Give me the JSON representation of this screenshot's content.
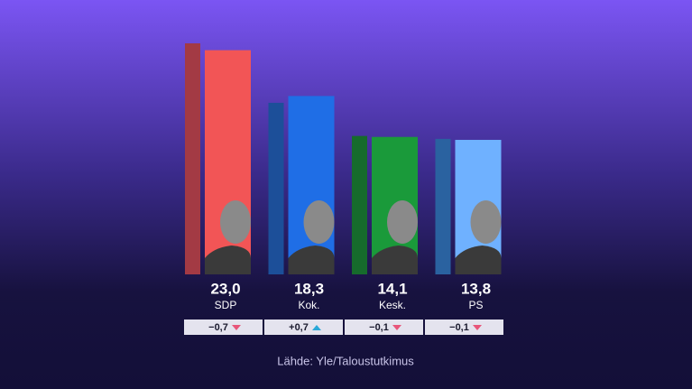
{
  "chart_data": {
    "type": "bar",
    "categories": [
      "SDP",
      "Kok.",
      "Kesk.",
      "PS"
    ],
    "values": [
      23.0,
      18.3,
      14.1,
      13.8
    ],
    "value_labels": [
      "23,0",
      "18,3",
      "14,1",
      "13,8"
    ],
    "colors": [
      "#f25556",
      "#1f6ee6",
      "#1a9a3a",
      "#6fb1ff"
    ],
    "previous_values": [
      23.7,
      17.6,
      14.2,
      13.9
    ],
    "previous_colors": [
      "#a33a44",
      "#1c4f99",
      "#166b2c",
      "#2a62a0"
    ],
    "changes": [
      -0.7,
      0.7,
      -0.1,
      -0.1
    ],
    "change_labels": [
      "−0,7",
      "+0,7",
      "−0,1",
      "−0,1"
    ],
    "ylim": [
      0,
      25
    ],
    "source": "Lähde: Yle/Taloustutkimus"
  }
}
